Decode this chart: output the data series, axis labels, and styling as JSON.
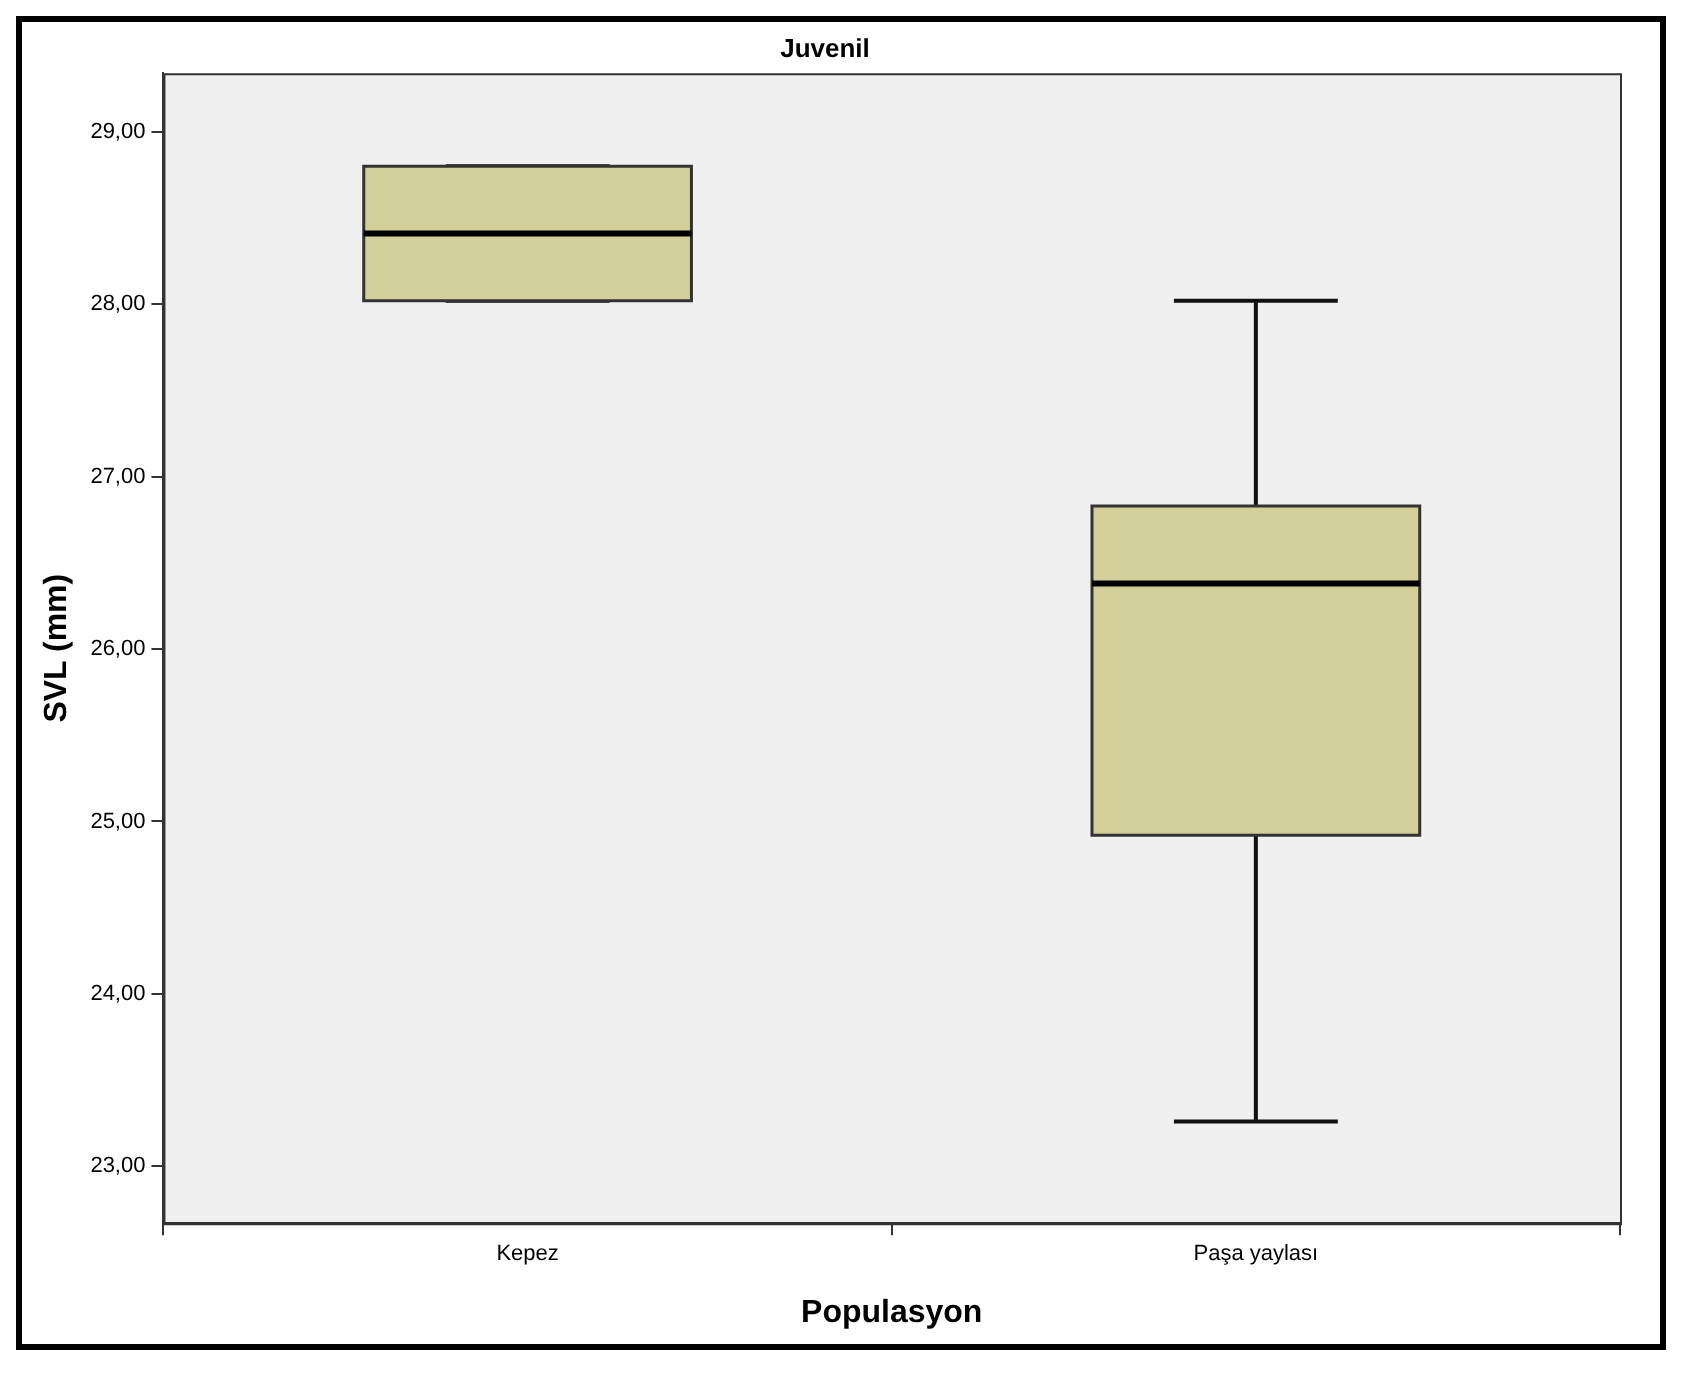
{
  "chart_data": {
    "type": "box",
    "title": "Juvenil",
    "xlabel": "Populasyon",
    "ylabel": "SVL (mm)",
    "categories": [
      "Kepez",
      "Paşa yaylası"
    ],
    "boxes": [
      {
        "low": 28.02,
        "q1": 28.02,
        "median": 28.41,
        "q3": 28.8,
        "high": 28.8
      },
      {
        "low": 23.26,
        "q1": 24.92,
        "median": 26.38,
        "q3": 26.83,
        "high": 28.02
      }
    ],
    "color": "#d3cf98",
    "ylim": [
      22.67,
      29.34
    ],
    "yticks": [
      {
        "value": 23,
        "label": "23,00"
      },
      {
        "value": 24,
        "label": "24,00"
      },
      {
        "value": 25,
        "label": "25,00"
      },
      {
        "value": 26,
        "label": "26,00"
      },
      {
        "value": 27,
        "label": "27,00"
      },
      {
        "value": 28,
        "label": "28,00"
      },
      {
        "value": 29,
        "label": "29,00"
      }
    ],
    "grid": false,
    "legend": false
  }
}
